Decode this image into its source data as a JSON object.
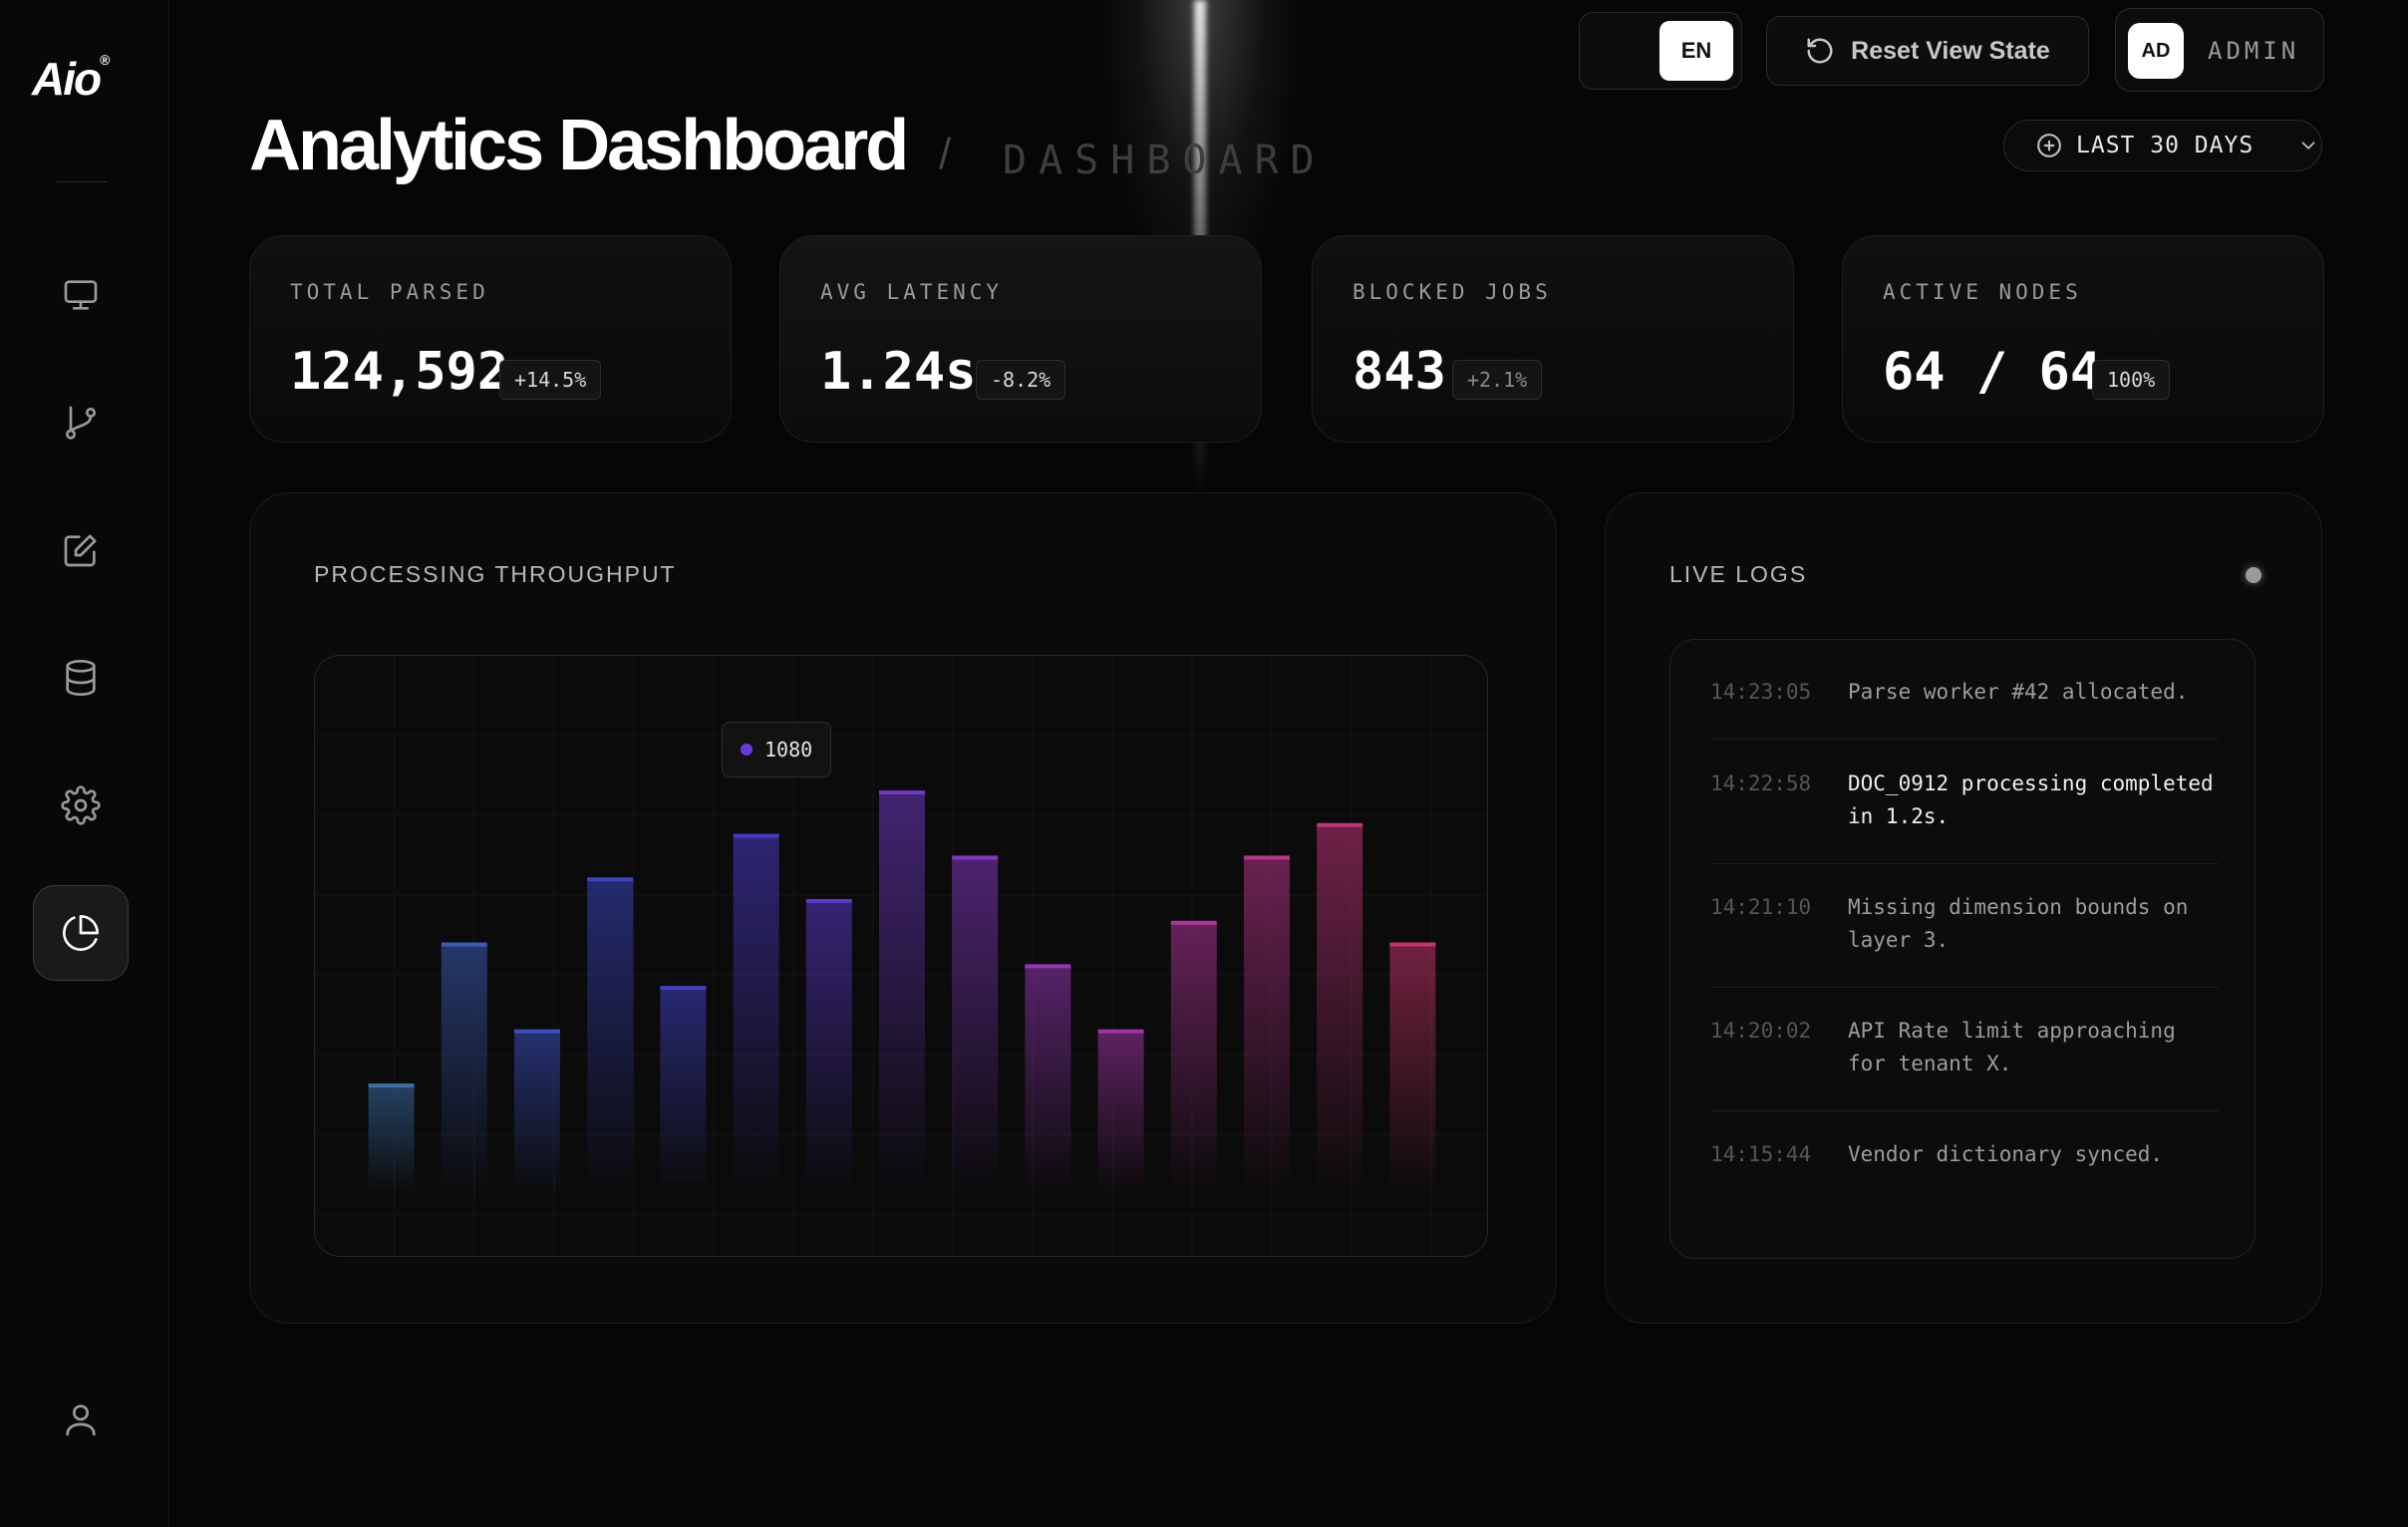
{
  "app": {
    "logo": "Aio",
    "logo_mark": "®"
  },
  "sidebar": {
    "items": [
      {
        "name": "monitor",
        "icon": "monitor-icon"
      },
      {
        "name": "branch",
        "icon": "git-branch-icon"
      },
      {
        "name": "edit",
        "icon": "edit-icon"
      },
      {
        "name": "database",
        "icon": "database-icon"
      },
      {
        "name": "settings",
        "icon": "gear-icon"
      },
      {
        "name": "analytics",
        "icon": "pie-chart-icon",
        "active": true
      }
    ],
    "footer_icon": "user-icon"
  },
  "header": {
    "language": {
      "selected": "EN"
    },
    "reset_label": "Reset View State",
    "user": {
      "initials": "AD",
      "name": "ADMIN"
    }
  },
  "page": {
    "title": "Analytics Dashboard",
    "separator": "/",
    "breadcrumb": "DASHBOARD",
    "range": {
      "label": "LAST 30 DAYS"
    }
  },
  "stats": [
    {
      "label": "TOTAL PARSED",
      "value": "124,592",
      "delta": "+14.5%"
    },
    {
      "label": "AVG LATENCY",
      "value": "1.24s",
      "delta": "-8.2%"
    },
    {
      "label": "BLOCKED JOBS",
      "value": "843",
      "delta": "+2.1%"
    },
    {
      "label": "ACTIVE NODES",
      "value": "64 / 64",
      "delta": "100%"
    }
  ],
  "throughput": {
    "title": "PROCESSING THROUGHPUT",
    "tooltip": "1080"
  },
  "chart_data": {
    "type": "bar",
    "title": "PROCESSING THROUGHPUT",
    "values": [
      750,
      880,
      800,
      940,
      840,
      980,
      920,
      1020,
      960,
      860,
      800,
      900,
      960,
      990,
      880
    ],
    "ylim": [
      650,
      1100
    ],
    "grid": true,
    "colors": [
      "#3c6ea8",
      "#3b5bb8",
      "#3a4fc0",
      "#3b44c2",
      "#4040c4",
      "#4b3ac8",
      "#5a38c8",
      "#7038c6",
      "#8238c0",
      "#9436b4",
      "#a234a6",
      "#ae3496",
      "#b83488",
      "#c0347a",
      "#c4346a"
    ]
  },
  "logs": {
    "title": "LIVE LOGS",
    "entries": [
      {
        "time": "14:23:05",
        "message": "Parse worker #42 allocated.",
        "highlight": false
      },
      {
        "time": "14:22:58",
        "message": "DOC_0912 processing completed in 1.2s.",
        "highlight": true
      },
      {
        "time": "14:21:10",
        "message": "Missing dimension bounds on layer 3.",
        "highlight": false
      },
      {
        "time": "14:20:02",
        "message": "API Rate limit approaching for tenant X.",
        "highlight": false
      },
      {
        "time": "14:15:44",
        "message": "Vendor dictionary synced.",
        "highlight": false
      }
    ]
  }
}
